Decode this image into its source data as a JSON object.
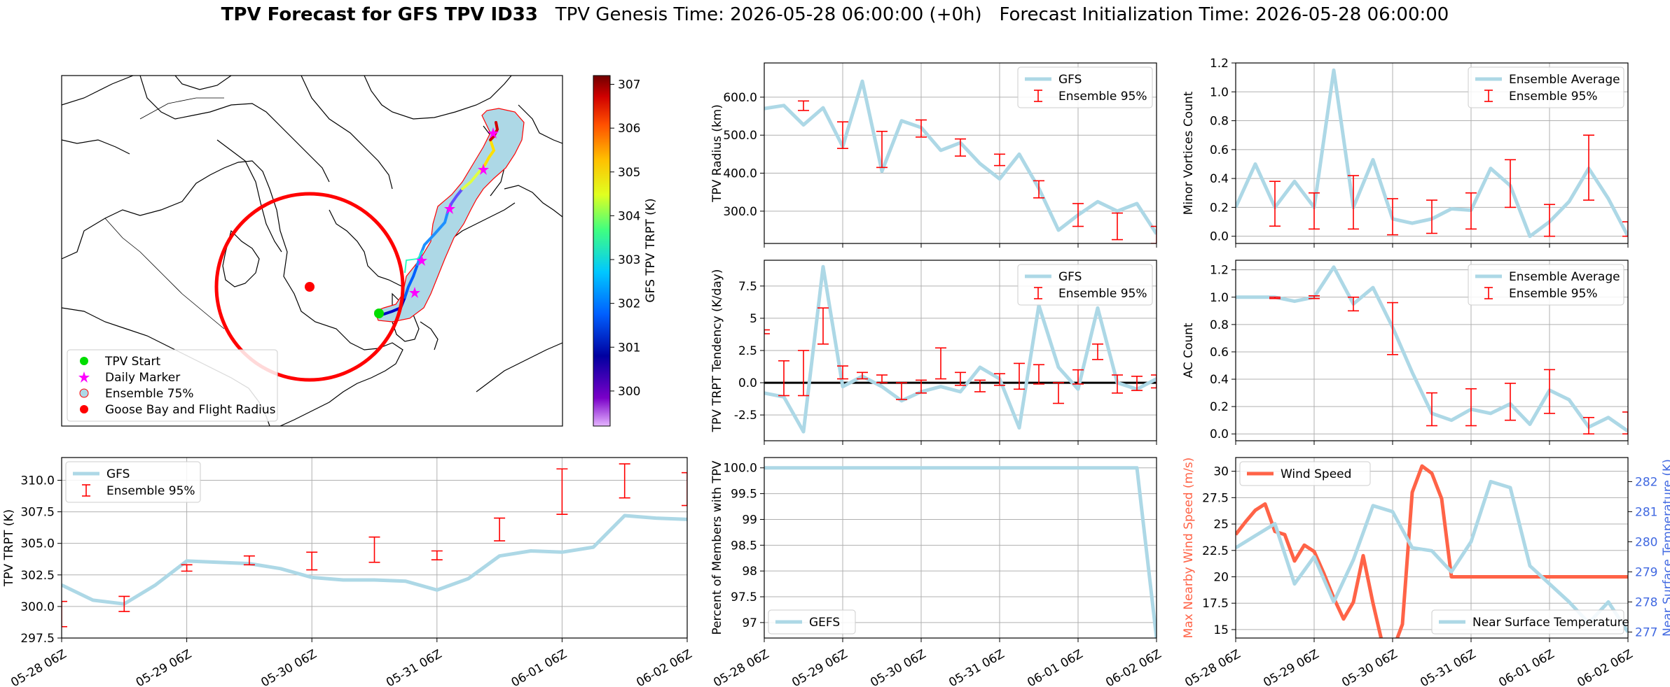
{
  "title": {
    "bold": "TPV Forecast for GFS TPV ID33",
    "genesis": "TPV Genesis Time: 2026-05-28 06:00:00 (+0h)",
    "init": "Forecast Initialization Time: 2026-05-28 06:00:00"
  },
  "colors": {
    "gfs": "#add8e6",
    "ensemble": "#ff0000",
    "wind": "#ff6347",
    "temp_axis": "#4169e1",
    "grid": "#b0b0b0"
  },
  "time_ticks": [
    "05-28 06Z",
    "05-29 06Z",
    "05-30 06Z",
    "05-31 06Z",
    "06-01 06Z",
    "06-02 06Z"
  ],
  "map": {
    "colorbar_label": "GFS TPV TRPT (K)",
    "colorbar_ticks": [
      "300",
      "301",
      "302",
      "303",
      "304",
      "305",
      "306",
      "307"
    ],
    "legend": [
      "TPV Start",
      "Daily Marker",
      "Ensemble 75%",
      "Goose Bay and Flight Radius"
    ]
  },
  "chart_data": [
    {
      "id": "radius",
      "type": "line",
      "ylabel": "TPV Radius (km)",
      "ylim": [
        215,
        690
      ],
      "yticks": [
        300,
        400,
        500,
        600
      ],
      "legend": [
        "GFS",
        "Ensemble 95%"
      ],
      "series": [
        {
          "name": "GFS",
          "x": [
            0,
            0.25,
            0.5,
            0.75,
            1,
            1.25,
            1.5,
            1.75,
            2,
            2.25,
            2.5,
            2.75,
            3,
            3.25,
            3.5,
            3.75,
            4,
            4.25,
            4.5,
            4.75,
            5
          ],
          "values": [
            570,
            578,
            527,
            572,
            470,
            642,
            405,
            538,
            520,
            460,
            480,
            425,
            385,
            450,
            360,
            250,
            290,
            325,
            300,
            320,
            240
          ]
        },
        {
          "name": "Ensemble 95%",
          "x": [
            1,
            1.5,
            2,
            2.5,
            3,
            3.5,
            4,
            4.5,
            5
          ],
          "low": [
            465,
            415,
            495,
            445,
            420,
            335,
            260,
            225,
            215
          ],
          "high": [
            535,
            510,
            540,
            490,
            450,
            380,
            320,
            295,
            260
          ]
        }
      ],
      "extra_bars": [
        {
          "x": 0.5,
          "low": 565,
          "high": 590
        }
      ]
    },
    {
      "id": "minor",
      "type": "line",
      "ylabel": "Minor Vortices Count",
      "ylim": [
        -0.05,
        1.2
      ],
      "yticks": [
        0.0,
        0.2,
        0.4,
        0.6,
        0.8,
        1.0,
        1.2
      ],
      "legend": [
        "Ensemble Average",
        "Ensemble 95%"
      ],
      "series": [
        {
          "name": "Ensemble Average",
          "x": [
            0,
            0.25,
            0.5,
            0.75,
            1,
            1.25,
            1.5,
            1.75,
            2,
            2.25,
            2.5,
            2.75,
            3,
            3.25,
            3.5,
            3.75,
            4,
            4.25,
            4.5,
            4.75,
            5
          ],
          "values": [
            0.2,
            0.5,
            0.2,
            0.38,
            0.2,
            1.15,
            0.2,
            0.53,
            0.12,
            0.09,
            0.12,
            0.19,
            0.18,
            0.47,
            0.35,
            0.0,
            0.1,
            0.24,
            0.47,
            0.26,
            0.0
          ]
        },
        {
          "name": "Ensemble 95%",
          "x": [
            0.5,
            1,
            1.5,
            2,
            2.5,
            3,
            3.5,
            4,
            4.5,
            5
          ],
          "low": [
            0.07,
            0.05,
            0.05,
            0.01,
            0.02,
            0.05,
            0.2,
            0.0,
            0.25,
            0.0
          ],
          "high": [
            0.38,
            0.3,
            0.42,
            0.26,
            0.25,
            0.3,
            0.53,
            0.22,
            0.7,
            0.1
          ]
        }
      ]
    },
    {
      "id": "tendency",
      "type": "line",
      "ylabel": "TPV TRPT Tendency (K/day)",
      "ylim": [
        -4.5,
        9.5
      ],
      "yticks": [
        -2.5,
        0.0,
        2.5,
        5.0,
        7.5
      ],
      "zero_line": true,
      "legend": [
        "GFS",
        "Ensemble 95%"
      ],
      "series": [
        {
          "name": "GFS",
          "x": [
            0,
            0.25,
            0.5,
            0.75,
            1,
            1.25,
            1.5,
            1.75,
            2,
            2.25,
            2.5,
            2.75,
            3,
            3.25,
            3.5,
            3.75,
            4,
            4.25,
            4.5,
            4.75,
            5
          ],
          "values": [
            -0.8,
            -1.1,
            -3.8,
            9.0,
            -0.3,
            0.5,
            -0.3,
            -1.4,
            -0.7,
            -0.3,
            -0.7,
            1.2,
            0.3,
            -3.5,
            6.0,
            1.2,
            -0.5,
            5.8,
            0.0,
            -0.5,
            0.3
          ]
        },
        {
          "name": "Ensemble 95%",
          "x": [
            0.25,
            0.5,
            0.75,
            1,
            1.25,
            1.5,
            1.75,
            2,
            2.25,
            2.5,
            2.75,
            3,
            3.25,
            3.5,
            3.75,
            4,
            4.25,
            4.5,
            4.75,
            5
          ],
          "low": [
            -1.0,
            -1.0,
            3.0,
            0.3,
            0.3,
            0.0,
            -1.3,
            -0.8,
            0.3,
            -0.2,
            -0.7,
            -0.2,
            -0.5,
            -0.1,
            -1.6,
            -0.1,
            1.8,
            -0.8,
            -0.6,
            -0.4
          ],
          "high": [
            1.7,
            2.5,
            5.8,
            1.3,
            0.8,
            0.6,
            0.0,
            0.2,
            2.7,
            0.8,
            0.2,
            0.7,
            1.5,
            1.4,
            0.0,
            1.0,
            3.0,
            0.6,
            0.5,
            0.6
          ]
        }
      ],
      "extra_bars": [
        {
          "x": 0,
          "low": 3.8,
          "high": 4.1
        }
      ]
    },
    {
      "id": "ac",
      "type": "line",
      "ylabel": "AC Count",
      "ylim": [
        -0.05,
        1.27
      ],
      "yticks": [
        0.0,
        0.2,
        0.4,
        0.6,
        0.8,
        1.0,
        1.2
      ],
      "legend": [
        "Ensemble Average",
        "Ensemble 95%"
      ],
      "series": [
        {
          "name": "Ensemble Average",
          "x": [
            0,
            0.25,
            0.5,
            0.75,
            1,
            1.25,
            1.5,
            1.75,
            2,
            2.25,
            2.5,
            2.75,
            3,
            3.25,
            3.5,
            3.75,
            4,
            4.25,
            4.5,
            4.75,
            5
          ],
          "values": [
            1.0,
            1.0,
            1.0,
            0.97,
            1.0,
            1.22,
            0.95,
            1.07,
            0.78,
            0.45,
            0.15,
            0.1,
            0.18,
            0.15,
            0.22,
            0.07,
            0.32,
            0.25,
            0.05,
            0.12,
            0.02
          ]
        },
        {
          "name": "Ensemble 95%",
          "x": [
            0.5,
            1,
            1.5,
            2,
            2.5,
            3,
            3.5,
            4,
            4.5,
            5
          ],
          "low": [
            0.99,
            0.99,
            0.9,
            0.58,
            0.06,
            0.06,
            0.1,
            0.15,
            0.0,
            0.0
          ],
          "high": [
            1.0,
            1.01,
            1.0,
            0.96,
            0.3,
            0.33,
            0.37,
            0.47,
            0.12,
            0.16
          ]
        }
      ]
    },
    {
      "id": "trpt",
      "type": "line",
      "ylabel": "TPV TRPT (K)",
      "ylim": [
        297.5,
        311.8
      ],
      "yticks": [
        297.5,
        300.0,
        302.5,
        305.0,
        307.5,
        310.0
      ],
      "legend": [
        "GFS",
        "Ensemble 95%"
      ],
      "series": [
        {
          "name": "GFS",
          "x": [
            0,
            0.25,
            0.5,
            0.75,
            1,
            1.25,
            1.5,
            1.75,
            2,
            2.25,
            2.5,
            2.75,
            3,
            3.25,
            3.5,
            3.75,
            4,
            4.25,
            4.5,
            4.75,
            5
          ],
          "values": [
            301.7,
            300.5,
            300.2,
            301.7,
            303.6,
            303.5,
            303.4,
            303.0,
            302.3,
            302.1,
            302.1,
            302.0,
            301.3,
            302.2,
            304.0,
            304.4,
            304.3,
            304.7,
            307.2,
            307.0,
            306.9
          ]
        },
        {
          "name": "Ensemble 95%",
          "x": [
            0.5,
            1,
            1.5,
            2,
            2.5,
            3,
            3.5,
            4,
            4.5,
            5
          ],
          "low": [
            299.6,
            302.8,
            303.3,
            302.9,
            303.5,
            303.7,
            305.2,
            307.3,
            308.6,
            308.0
          ],
          "high": [
            300.8,
            303.3,
            304.0,
            304.3,
            305.5,
            304.4,
            307.0,
            310.9,
            311.3,
            310.6
          ]
        }
      ],
      "extra_bars": [
        {
          "x": 0,
          "low": 298.4,
          "high": 300.4
        }
      ]
    },
    {
      "id": "percent",
      "type": "line",
      "ylabel": "Percent of Members with TPV",
      "ylim": [
        96.7,
        100.2
      ],
      "yticks": [
        97.0,
        97.5,
        98.0,
        98.5,
        99.0,
        99.5,
        100.0
      ],
      "legend": [
        "GEFS"
      ],
      "series": [
        {
          "name": "GEFS",
          "x": [
            0,
            4.75,
            5
          ],
          "values": [
            100.0,
            100.0,
            96.7
          ]
        }
      ]
    },
    {
      "id": "wind_temp",
      "type": "line",
      "ylabel": "Max Nearby Wind Speed (m/s)",
      "ylabel2": "Near Surface Temperature (K)",
      "ylim": [
        14.2,
        31.3
      ],
      "yticks": [
        15.0,
        17.5,
        20.0,
        22.5,
        25.0,
        27.5,
        30.0
      ],
      "ylim2": [
        276.8,
        282.8
      ],
      "yticks2": [
        277,
        278,
        279,
        280,
        281,
        282
      ],
      "legend": [
        "Wind Speed"
      ],
      "legend2": [
        "Near Surface Temperature"
      ],
      "series": [
        {
          "name": "Wind Speed",
          "axis": "left",
          "x": [
            0,
            0.125,
            0.25,
            0.375,
            0.5,
            0.625,
            0.75,
            0.875,
            1,
            1.125,
            1.25,
            1.375,
            1.5,
            1.625,
            1.75,
            1.875,
            2,
            2.125,
            2.25,
            2.375,
            2.5,
            2.625,
            2.75,
            2.875,
            3,
            3.125,
            3.25,
            3.375,
            3.5,
            3.625,
            3.75,
            3.875,
            4,
            4.125,
            4.25,
            4.375,
            4.5,
            4.625,
            4.75,
            4.875,
            5
          ],
          "values": [
            24.0,
            25.2,
            26.3,
            26.9,
            24.3,
            24.0,
            21.5,
            23.0,
            22.4,
            20.3,
            18.0,
            16.0,
            17.6,
            22.0,
            17.5,
            13.5,
            13.0,
            15.5,
            28.0,
            30.5,
            29.8,
            27.4,
            20.0,
            20.0,
            20.0,
            20.0,
            20.0,
            20.0,
            20.0,
            20.0,
            20.0,
            20.0,
            20.0,
            20.0,
            20.0,
            20.0,
            20.0,
            20.0,
            20.0,
            20.0,
            20.0
          ],
          "x_used": [
            0,
            0.25,
            0.5,
            0.625,
            0.75,
            0.875,
            1,
            1.125,
            1.25,
            1.375,
            1.5,
            1.625,
            1.75,
            2,
            2.25,
            2.375,
            2.625,
            2.75,
            3,
            3.25,
            3.5,
            3.75,
            4,
            4.25,
            4.5,
            4.75,
            5
          ]
        },
        {
          "name": "Near Surface Temperature",
          "axis": "right",
          "x": [
            0,
            0.25,
            0.5,
            0.75,
            1,
            1.25,
            1.5,
            1.75,
            2,
            2.25,
            2.5,
            2.75,
            3,
            3.25,
            3.5,
            3.75,
            4,
            4.25,
            4.5,
            4.75,
            5
          ],
          "values": [
            279.8,
            280.2,
            280.6,
            278.6,
            279.5,
            278.0,
            279.4,
            281.2,
            281.0,
            279.8,
            279.7,
            279.0,
            280.0,
            282.0,
            281.8,
            279.2,
            278.6,
            278.0,
            277.3,
            278.0,
            277.0
          ]
        }
      ]
    }
  ]
}
